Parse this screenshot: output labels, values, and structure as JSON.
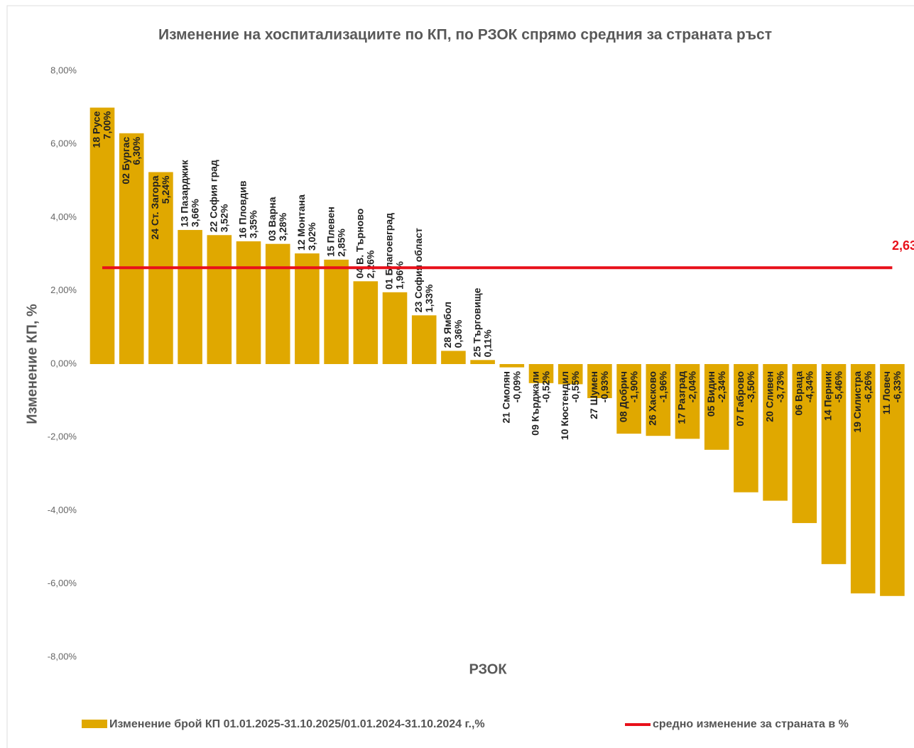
{
  "chart_data": {
    "type": "bar",
    "title": "Изменение на хоспитализациите по КП, по РЗОК спрямо средния за страната ръст",
    "ylabel": "Изменение КП, %",
    "xlabel": "РЗОК",
    "categories": [
      "18 Русе",
      "02 Бургас",
      "24 Ст. Загора",
      "13 Пазарджик",
      "22 София град",
      "16 Пловдив",
      "03 Варна",
      "12 Монтана",
      "15 Плевен",
      "04 В. Търново",
      "01 Благоевград",
      "23 София област",
      "28 Ямбол",
      "25 Търговище",
      "21 Смолян",
      "09 Кърджали",
      "10 Кюстендил",
      "27 Шумен",
      "08 Добрич",
      "26 Хасково",
      "17 Разград",
      "05 Видин",
      "07 Габрово",
      "20 Сливен",
      "06 Враца",
      "14 Перник",
      "19 Силистра",
      "11 Ловеч"
    ],
    "series": [
      {
        "name": "Изменение брой КП 01.01.2025-31.10.2025/01.01.2024-31.10.2024 г.,%",
        "color": "#e0a800",
        "values": [
          7.0,
          6.3,
          5.24,
          3.66,
          3.52,
          3.35,
          3.28,
          3.02,
          2.85,
          2.26,
          1.96,
          1.33,
          0.36,
          0.11,
          -0.09,
          -0.52,
          -0.55,
          -0.93,
          -1.9,
          -1.96,
          -2.04,
          -2.34,
          -3.5,
          -3.73,
          -4.34,
          -5.46,
          -6.26,
          -6.33
        ],
        "value_labels": [
          "7,00%",
          "6,30%",
          "5,24%",
          "3,66%",
          "3,52%",
          "3,35%",
          "3,28%",
          "3,02%",
          "2,85%",
          "2,26%",
          "1,96%",
          "1,33%",
          "0,36%",
          "0,11%",
          "-0,09%",
          "-0,52%",
          "-0,55%",
          "-0,93%",
          "-1,90%",
          "-1,96%",
          "-2,04%",
          "-2,34%",
          "-3,50%",
          "-3,73%",
          "-4,34%",
          "-5,46%",
          "-6,26%",
          "-6,33%"
        ]
      }
    ],
    "average": {
      "name": "средно изменение за страната в %",
      "color": "#e8101a",
      "value": 2.63,
      "label": "2,63%"
    },
    "ylim": [
      -8,
      8
    ],
    "yticks": [
      {
        "value": 8,
        "label": "8,00%"
      },
      {
        "value": 6,
        "label": "6,00%"
      },
      {
        "value": 4,
        "label": "4,00%"
      },
      {
        "value": 2,
        "label": "2,00%"
      },
      {
        "value": 0,
        "label": "0,00%"
      },
      {
        "value": -2,
        "label": "-2,00%"
      },
      {
        "value": -4,
        "label": "-4,00%"
      },
      {
        "value": -6,
        "label": "-6,00%"
      },
      {
        "value": -8,
        "label": "-8,00%"
      }
    ],
    "grid": false
  }
}
